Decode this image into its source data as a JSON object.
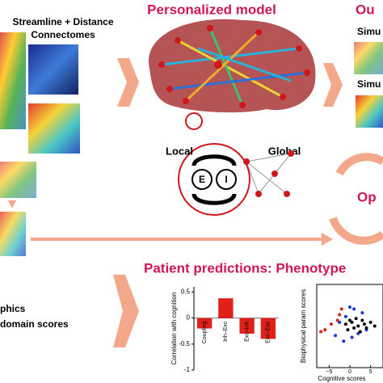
{
  "labels": {
    "inputs_title_1": "Streamline + Distance",
    "inputs_title_2": "Connectomes",
    "model_title": "Personalized model",
    "outputs_title": "Ou",
    "sim_1": "Simu",
    "sim_2": "Simu",
    "local": "Local",
    "global": "Global",
    "node_e": "E",
    "node_i": "I",
    "optimize": "Op",
    "predictions_title": "Patient predictions: Phenotype",
    "demographics_1": "phics",
    "demographics_2": "domain scores"
  },
  "chart_data": [
    {
      "type": "bar",
      "ylabel": "Correlation with cognition",
      "categories": [
        "Coupling",
        "Inh–Exc",
        "Exc–Inh",
        "Exc–Exc"
      ],
      "values": [
        -0.2,
        0.38,
        -0.3,
        -0.4
      ],
      "color": "#e0201b",
      "ylim": [
        -1,
        0.6
      ],
      "yticks": [
        0.5,
        0,
        -0.5,
        -1
      ]
    },
    {
      "type": "scatter",
      "xlabel": "Cognitive scores",
      "ylabel": "Biophysical param scores",
      "xlim": [
        -8,
        8
      ],
      "ylim": [
        -2.2,
        2.2
      ],
      "xticks": [
        {
          "value": -5,
          "label": "−5"
        },
        0,
        5
      ],
      "series": [
        {
          "name": "red",
          "color": "#e0201b",
          "x": [
            -7,
            -6,
            -4.5,
            -3,
            -2.5,
            -2
          ],
          "values": [
            -0.3,
            -0.2,
            0.1,
            0.3,
            0.6,
            0.9
          ]
        },
        {
          "name": "blue",
          "color": "#1c35d6",
          "x": [
            -3.5,
            -2.5,
            -1.5,
            -1,
            0,
            0.5,
            1,
            2,
            3,
            4
          ],
          "values": [
            -0.5,
            0.2,
            -0.8,
            0.5,
            1.0,
            -0.6,
            0.9,
            -0.4,
            0.7,
            -0.2
          ]
        },
        {
          "name": "black",
          "color": "#000000",
          "x": [
            -1,
            -0.5,
            0,
            0.5,
            1,
            1.5,
            2,
            2.5,
            3,
            3.5,
            4,
            5,
            6
          ],
          "values": [
            0.1,
            -0.2,
            0.3,
            0.2,
            -0.1,
            0.4,
            0,
            -0.3,
            0.3,
            0.1,
            -0.1,
            0.2,
            0
          ]
        }
      ]
    }
  ]
}
